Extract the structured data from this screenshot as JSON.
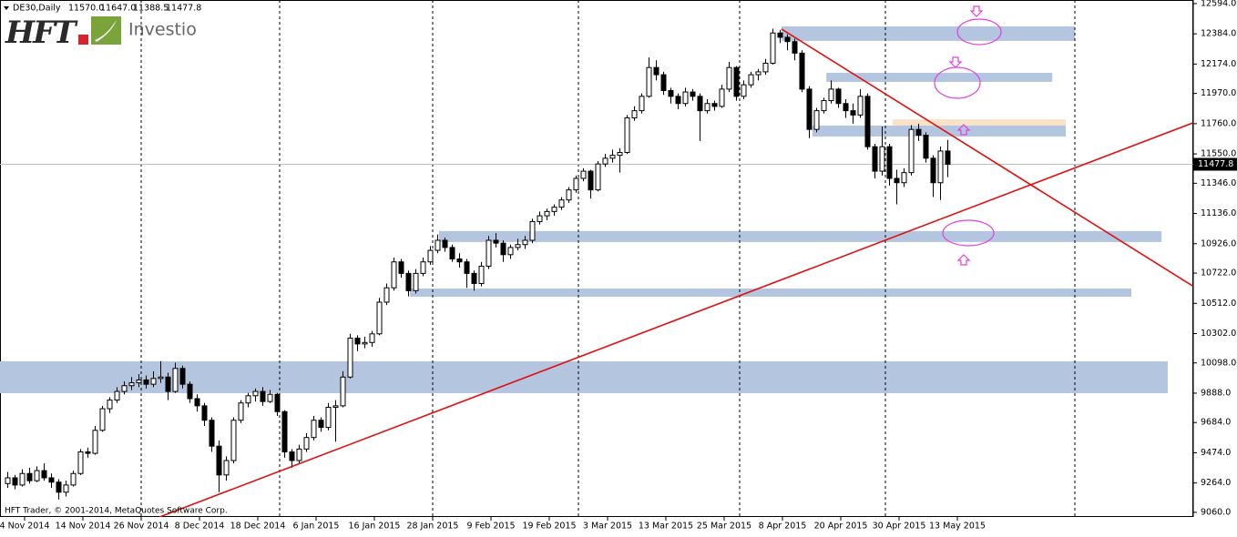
{
  "header": {
    "symbol": "DE30,Daily"
  },
  "logo": {
    "brand": "HFT",
    "name": "Investio"
  },
  "footer": "HFT Trader, © 2001-2014, MetaQuotes Software Corp.",
  "quote": {
    "values": [
      11570,
      11647,
      11388.5,
      11477.8
    ],
    "value_labels": [
      "11570.0",
      "11647.0",
      "11388.5",
      "11477.8"
    ]
  },
  "chart_data": {
    "type": "candlestick",
    "categories": [
      "4 Nov 2014",
      null,
      null,
      null,
      null,
      null,
      null,
      null,
      "14 Nov 2014",
      null,
      null,
      null,
      null,
      null,
      null,
      null,
      "26 Nov 2014",
      null,
      null,
      null,
      null,
      null,
      null,
      null,
      "8 Dec 2014",
      null,
      null,
      null,
      null,
      null,
      null,
      null,
      "18 Dec 2014",
      null,
      null,
      null,
      null,
      null,
      null,
      null,
      "6 Jan 2015",
      null,
      null,
      null,
      null,
      null,
      null,
      null,
      "16 Jan 2015",
      null,
      null,
      null,
      null,
      null,
      null,
      null,
      "28 Jan 2015",
      null,
      null,
      null,
      null,
      null,
      null,
      null,
      "9 Feb 2015",
      null,
      null,
      null,
      null,
      null,
      null,
      null,
      "19 Feb 2015",
      null,
      null,
      null,
      null,
      null,
      null,
      null,
      "3 Mar 2015",
      null,
      null,
      null,
      null,
      null,
      null,
      null,
      "13 Mar 2015",
      null,
      null,
      null,
      null,
      null,
      null,
      null,
      "25 Mar 2015",
      null,
      null,
      null,
      null,
      null,
      null,
      null,
      "8 Apr 2015",
      null,
      null,
      null,
      null,
      null,
      null,
      null,
      "20 Apr 2015",
      null,
      null,
      null,
      null,
      null,
      null,
      null,
      "30 Apr 2015",
      null,
      null,
      null,
      null,
      null,
      null,
      null,
      "13 May 2015",
      null
    ],
    "ohlc": [
      [
        9260,
        9340,
        9230,
        9300
      ],
      [
        9300,
        9320,
        9220,
        9250
      ],
      [
        9250,
        9360,
        9240,
        9330
      ],
      [
        9330,
        9370,
        9260,
        9280
      ],
      [
        9280,
        9380,
        9270,
        9350
      ],
      [
        9350,
        9400,
        9280,
        9300
      ],
      [
        9300,
        9330,
        9230,
        9270
      ],
      [
        9270,
        9290,
        9150,
        9200
      ],
      [
        9200,
        9280,
        9170,
        9250
      ],
      [
        9250,
        9350,
        9240,
        9330
      ],
      [
        9330,
        9500,
        9320,
        9480
      ],
      [
        9480,
        9510,
        9440,
        9470
      ],
      [
        9470,
        9660,
        9460,
        9630
      ],
      [
        9630,
        9800,
        9620,
        9780
      ],
      [
        9780,
        9860,
        9750,
        9840
      ],
      [
        9840,
        9930,
        9820,
        9900
      ],
      [
        9900,
        9970,
        9880,
        9940
      ],
      [
        9940,
        10000,
        9910,
        9960
      ],
      [
        9960,
        10020,
        9930,
        9980
      ],
      [
        9980,
        10010,
        9920,
        9950
      ],
      [
        9950,
        10040,
        9930,
        9990
      ],
      [
        9990,
        10110,
        9960,
        10000
      ],
      [
        10000,
        10030,
        9840,
        9900
      ],
      [
        9900,
        10100,
        9890,
        10060
      ],
      [
        10060,
        10080,
        9920,
        9950
      ],
      [
        9950,
        9970,
        9820,
        9850
      ],
      [
        9850,
        9880,
        9760,
        9800
      ],
      [
        9800,
        9820,
        9660,
        9700
      ],
      [
        9700,
        9720,
        9480,
        9520
      ],
      [
        9520,
        9560,
        9200,
        9320
      ],
      [
        9320,
        9450,
        9280,
        9420
      ],
      [
        9420,
        9720,
        9400,
        9700
      ],
      [
        9700,
        9840,
        9680,
        9820
      ],
      [
        9820,
        9890,
        9790,
        9870
      ],
      [
        9870,
        9920,
        9830,
        9900
      ],
      [
        9900,
        9930,
        9800,
        9830
      ],
      [
        9830,
        9910,
        9820,
        9880
      ],
      [
        9880,
        9890,
        9730,
        9760
      ],
      [
        9760,
        9770,
        9440,
        9480
      ],
      [
        9480,
        9500,
        9370,
        9420
      ],
      [
        9420,
        9530,
        9400,
        9500
      ],
      [
        9500,
        9610,
        9480,
        9580
      ],
      [
        9580,
        9730,
        9560,
        9700
      ],
      [
        9700,
        9720,
        9620,
        9650
      ],
      [
        9650,
        9820,
        9630,
        9790
      ],
      [
        9790,
        9840,
        9550,
        9800
      ],
      [
        9800,
        10040,
        9790,
        10000
      ],
      [
        10000,
        10300,
        9990,
        10270
      ],
      [
        10270,
        10290,
        10180,
        10230
      ],
      [
        10230,
        10280,
        10200,
        10240
      ],
      [
        10240,
        10320,
        10210,
        10300
      ],
      [
        10300,
        10550,
        10290,
        10520
      ],
      [
        10520,
        10650,
        10500,
        10620
      ],
      [
        10620,
        10830,
        10600,
        10800
      ],
      [
        10800,
        10820,
        10690,
        10720
      ],
      [
        10720,
        10740,
        10560,
        10600
      ],
      [
        10600,
        10750,
        10580,
        10720
      ],
      [
        10720,
        10830,
        10700,
        10800
      ],
      [
        10800,
        10910,
        10780,
        10880
      ],
      [
        10880,
        10990,
        10860,
        10950
      ],
      [
        10950,
        10970,
        10870,
        10900
      ],
      [
        10900,
        10920,
        10800,
        10820
      ],
      [
        10820,
        10860,
        10760,
        10800
      ],
      [
        10800,
        10820,
        10620,
        10720
      ],
      [
        10720,
        10740,
        10600,
        10650
      ],
      [
        10650,
        10800,
        10630,
        10770
      ],
      [
        10770,
        10980,
        10750,
        10950
      ],
      [
        10950,
        11000,
        10900,
        10930
      ],
      [
        10930,
        10950,
        10800,
        10850
      ],
      [
        10850,
        10920,
        10820,
        10900
      ],
      [
        10900,
        10960,
        10880,
        10920
      ],
      [
        10920,
        10980,
        10890,
        10950
      ],
      [
        10950,
        11100,
        10930,
        11080
      ],
      [
        11080,
        11150,
        11060,
        11120
      ],
      [
        11120,
        11170,
        11090,
        11150
      ],
      [
        11150,
        11200,
        11120,
        11180
      ],
      [
        11180,
        11250,
        11160,
        11230
      ],
      [
        11230,
        11320,
        11210,
        11300
      ],
      [
        11300,
        11400,
        11280,
        11380
      ],
      [
        11380,
        11450,
        11360,
        11430
      ],
      [
        11430,
        11440,
        11240,
        11300
      ],
      [
        11300,
        11500,
        11290,
        11480
      ],
      [
        11480,
        11550,
        11460,
        11520
      ],
      [
        11520,
        11580,
        11490,
        11540
      ],
      [
        11540,
        11590,
        11420,
        11560
      ],
      [
        11560,
        11820,
        11550,
        11800
      ],
      [
        11800,
        11880,
        11780,
        11850
      ],
      [
        11850,
        11970,
        11830,
        11950
      ],
      [
        11950,
        12220,
        11940,
        12150
      ],
      [
        12150,
        12200,
        12060,
        12100
      ],
      [
        12100,
        12120,
        11960,
        11990
      ],
      [
        11990,
        12010,
        11900,
        11950
      ],
      [
        11950,
        11970,
        11860,
        11900
      ],
      [
        11900,
        12010,
        11880,
        11980
      ],
      [
        11980,
        12000,
        11920,
        11950
      ],
      [
        11950,
        11970,
        11640,
        11850
      ],
      [
        11850,
        11930,
        11830,
        11900
      ],
      [
        11900,
        11920,
        11850,
        11880
      ],
      [
        11880,
        12030,
        11870,
        12000
      ],
      [
        12000,
        12190,
        11980,
        12150
      ],
      [
        12150,
        12160,
        11920,
        11950
      ],
      [
        11950,
        12060,
        11930,
        12030
      ],
      [
        12030,
        12120,
        12010,
        12100
      ],
      [
        12100,
        12140,
        12060,
        12120
      ],
      [
        12120,
        12210,
        12100,
        12180
      ],
      [
        12180,
        12420,
        12170,
        12390
      ],
      [
        12390,
        12410,
        12320,
        12360
      ],
      [
        12360,
        12380,
        12270,
        12330
      ],
      [
        12330,
        12350,
        12200,
        12250
      ],
      [
        12250,
        12270,
        11980,
        12000
      ],
      [
        12000,
        12020,
        11660,
        11720
      ],
      [
        11720,
        11870,
        11700,
        11850
      ],
      [
        11850,
        11940,
        11830,
        11920
      ],
      [
        11920,
        12060,
        11900,
        12000
      ],
      [
        12000,
        12010,
        11870,
        11900
      ],
      [
        11900,
        11930,
        11800,
        11850
      ],
      [
        11850,
        11900,
        11760,
        11820
      ],
      [
        11820,
        12000,
        11800,
        11950
      ],
      [
        11950,
        11970,
        11580,
        11600
      ],
      [
        11600,
        11620,
        11380,
        11430
      ],
      [
        11430,
        11740,
        11400,
        11600
      ],
      [
        11600,
        11620,
        11330,
        11380
      ],
      [
        11380,
        11440,
        11200,
        11350
      ],
      [
        11350,
        11450,
        11320,
        11420
      ],
      [
        11420,
        11750,
        11400,
        11720
      ],
      [
        11720,
        11760,
        11640,
        11680
      ],
      [
        11680,
        11700,
        11490,
        11520
      ],
      [
        11520,
        11540,
        11250,
        11350
      ],
      [
        11350,
        11600,
        11230,
        11570
      ],
      [
        11570,
        11647,
        11388.5,
        11477.8
      ]
    ],
    "ylim": [
      9028,
      12619
    ],
    "yticks": [
      {
        "value": 12594,
        "label": "12594.0"
      },
      {
        "value": 12384,
        "label": "12384.0"
      },
      {
        "value": 12174,
        "label": "12174.0"
      },
      {
        "value": 11970,
        "label": "11970.0"
      },
      {
        "value": 11760,
        "label": "11760.0"
      },
      {
        "value": 11550,
        "label": "11550.0"
      },
      {
        "value": 11346,
        "label": "11346.0"
      },
      {
        "value": 11136,
        "label": "11136.0"
      },
      {
        "value": 10926,
        "label": "10926.0"
      },
      {
        "value": 10722,
        "label": "10722.0"
      },
      {
        "value": 10512,
        "label": "10512.0"
      },
      {
        "value": 10302,
        "label": "10302.0"
      },
      {
        "value": 10098,
        "label": "10098.0"
      },
      {
        "value": 9888,
        "label": "9888.0"
      },
      {
        "value": 9684,
        "label": "9684.0"
      },
      {
        "value": 9474,
        "label": "9474.0"
      },
      {
        "value": 9264,
        "label": "9264.0"
      },
      {
        "value": 9060,
        "label": "9060.0"
      }
    ],
    "zones": [
      {
        "low": 9888,
        "high": 10109,
        "from": -1,
        "to": 159.25,
        "color": "#b4c6df"
      },
      {
        "low": 10558,
        "high": 10615,
        "from": 55.25,
        "to": 154.25,
        "color": "#b4c6df"
      },
      {
        "low": 10938,
        "high": 11014,
        "from": 59.25,
        "to": 158.4,
        "color": "#b4c6df"
      },
      {
        "low": 11747,
        "high": 11790,
        "from": 121.5,
        "to": 145.25,
        "color": "#fbe2c6"
      },
      {
        "low": 11671,
        "high": 11747,
        "from": 110.5,
        "to": 145.25,
        "color": "#b4c6df"
      },
      {
        "low": 12050,
        "high": 12113,
        "from": 112.4,
        "to": 143.4,
        "color": "#b4c6df"
      },
      {
        "low": 12335,
        "high": 12436,
        "from": 106.25,
        "to": 146.5,
        "color": "#b4c6df"
      }
    ],
    "trendlines": [
      {
        "from": [
          106.25,
          12417
        ],
        "to": [
          163.4,
          10610
        ],
        "color": "#e01010"
      },
      {
        "from": [
          20.9,
          9028
        ],
        "to": [
          163.4,
          11779
        ],
        "color": "#e01010"
      }
    ],
    "up_color": "#ffffff",
    "down_color": "#000000"
  }
}
